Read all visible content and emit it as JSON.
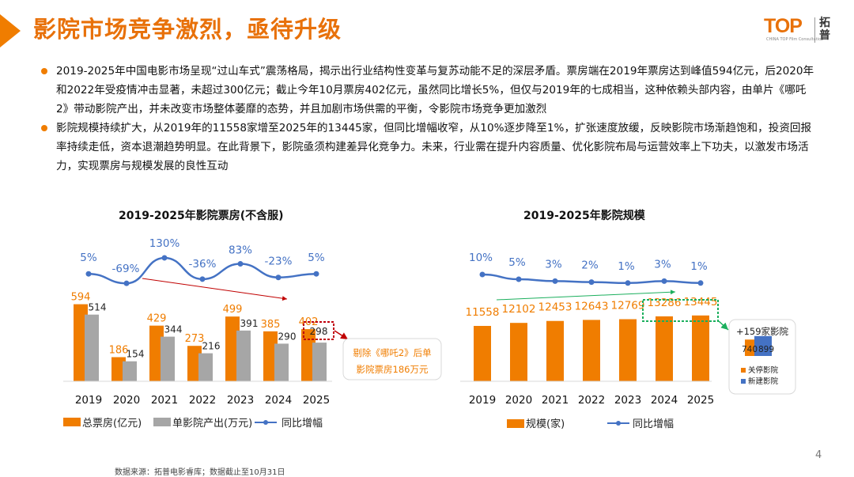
{
  "title": "影院市场竞争激烈，亟待升级",
  "logo": {
    "mark": "TOP",
    "cn": "拓普",
    "tagline": "CHINA TOP Film Consultation"
  },
  "bullets": [
    "2019-2025年中国电影市场呈现“过山车式”震荡格局，揭示出行业结构性变革与复苏动能不足的深层矛盾。票房端在2019年票房达到峰值594亿元，后2020年和2022年受疫情冲击显著，未超过300亿元；截止今年10月票房402亿元，虽然同比增长5%，但仅与2019年的七成相当，这种依赖头部内容，由单片《哪吒2》带动影院产出，并未改变市场整体萎靡的态势，并且加剧市场供需的平衡，令影院市场竞争更加激烈",
    "影院规模持续扩大，从2019年的11558家增至2025年的13445家，但同比增幅收窄，从10%逐步降至1%，扩张速度放缓，反映影院市场渐趋饱和，投资回报率持续走低，资本退潮趋势明显。在此背景下，影院亟须构建差异化竞争力。未来，行业需在提升内容质量、优化影院布局与运营效率上下功夫，以激发市场活力，实现票房与规模发展的良性互动"
  ],
  "colors": {
    "orange": "#F07D00",
    "gray": "#A6A6A6",
    "blue": "#4472C4",
    "title": "#E8710A",
    "green": "#1BAF5D",
    "darkred": "#C0000C",
    "redArrow": "#C00000"
  },
  "chart_data": [
    {
      "type": "bar",
      "title": "2019-2025年影院票房(不含服)",
      "categories": [
        "2019",
        "2020",
        "2021",
        "2022",
        "2023",
        "2024",
        "2025"
      ],
      "series": [
        {
          "name": "总票房(亿元)",
          "kind": "bar",
          "values": [
            594,
            186,
            429,
            273,
            499,
            385,
            402
          ],
          "labels": [
            "594",
            "186",
            "429",
            "273",
            "499",
            "385",
            "402"
          ]
        },
        {
          "name": "单影院产出(万元)",
          "kind": "bar",
          "values": [
            514,
            154,
            344,
            216,
            391,
            290,
            298
          ],
          "labels": [
            "514",
            "154",
            "344",
            "216",
            "391",
            "290",
            "298"
          ]
        },
        {
          "name": "同比增幅",
          "kind": "line",
          "values": [
            5,
            -69,
            130,
            -36,
            83,
            -23,
            5
          ],
          "labels": [
            "5%",
            "-69%",
            "130%",
            "-36%",
            "83%",
            "-23%",
            "5%"
          ]
        }
      ],
      "callout": {
        "text": "剔除《哪吒2》后单影院票房186万元",
        "line1": "剔除《哪吒2》后单",
        "line2": "影院票房186万元"
      },
      "legend_position": "bottom"
    },
    {
      "type": "bar",
      "title": "2019-2025年影院规模",
      "categories": [
        "2019",
        "2020",
        "2021",
        "2022",
        "2023",
        "2024",
        "2025"
      ],
      "series": [
        {
          "name": "规模(家)",
          "kind": "bar",
          "values": [
            11558,
            12102,
            12453,
            12643,
            12769,
            13286,
            13445
          ],
          "labels": [
            "11558",
            "12102",
            "12453",
            "12643",
            "12769",
            "13286",
            "13445"
          ]
        },
        {
          "name": "同比增幅",
          "kind": "line",
          "values": [
            10,
            5,
            3,
            2,
            1,
            3,
            1
          ],
          "labels": [
            "10%",
            "5%",
            "3%",
            "2%",
            "1%",
            "3%",
            "1%"
          ]
        }
      ],
      "inset": {
        "title": "+159家影院",
        "categories": [
          "关停影院",
          "新建影院"
        ],
        "values": [
          740,
          899
        ],
        "labels": [
          "740",
          "899"
        ]
      },
      "legend_position": "bottom"
    }
  ],
  "source": "数据来源：拓普电影睿库；数据截止至10月31日",
  "page_number": "4"
}
